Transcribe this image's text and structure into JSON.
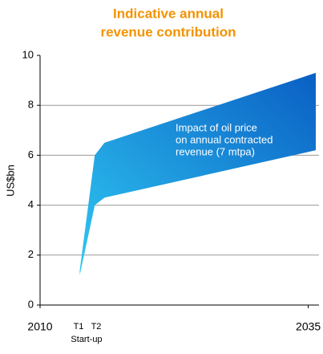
{
  "chart_data": {
    "type": "band",
    "title": [
      "Indicative annual",
      "revenue contribution"
    ],
    "ylabel": "US$bn",
    "x": [
      2013.7,
      2015.1,
      2016.0,
      2035.7
    ],
    "high": [
      1.4,
      6.0,
      6.5,
      9.3
    ],
    "low": [
      1.2,
      4.0,
      4.3,
      6.2
    ],
    "colors": [
      "#0a5fc4",
      "#2fc8f2"
    ],
    "xlim": [
      2010,
      2036
    ],
    "xticks": [
      2010,
      2035
    ],
    "ylim": [
      0,
      10
    ],
    "yticks": [
      0,
      2,
      4,
      6,
      8,
      10
    ],
    "grid": true,
    "annotation": [
      "Impact of oil price",
      "on annual contracted",
      "revenue (7 mtpa)"
    ],
    "x_notes": [
      "T1",
      "T2",
      "Start-up"
    ]
  }
}
